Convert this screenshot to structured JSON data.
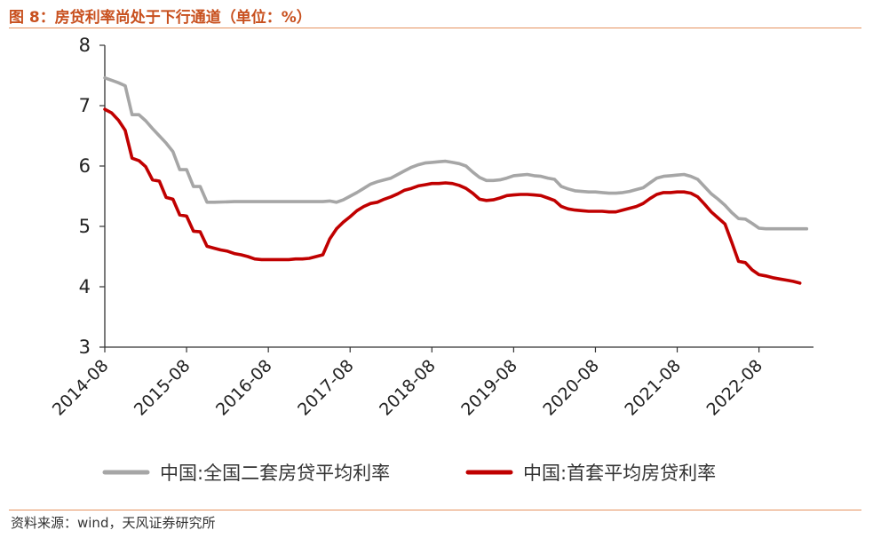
{
  "header": {
    "title": "图 8：房贷利率尚处于下行通道（单位：%）"
  },
  "footer": {
    "source": "资料来源：wind，天风证券研究所"
  },
  "colors": {
    "accent": "#c8501e",
    "series1": "#a6a6a6",
    "series2": "#c00000"
  },
  "chart_data": {
    "type": "line",
    "title": "",
    "xlabel": "",
    "ylabel": "",
    "ylim": [
      3,
      8
    ],
    "yticks": [
      3,
      4,
      5,
      6,
      7,
      8
    ],
    "x_start": "2014-08",
    "x_end": "2023-04",
    "xticks": [
      "2014-08",
      "2015-08",
      "2016-08",
      "2017-08",
      "2018-08",
      "2019-08",
      "2020-08",
      "2021-08",
      "2022-08"
    ],
    "legend_position": "bottom",
    "series": [
      {
        "name": "中国:全国二套房贷平均利率",
        "color": "#a6a6a6",
        "points": [
          [
            "2014-08",
            7.46
          ],
          [
            "2014-09",
            7.42
          ],
          [
            "2014-10",
            7.38
          ],
          [
            "2014-11",
            7.33
          ],
          [
            "2014-12",
            6.85
          ],
          [
            "2015-01",
            6.85
          ],
          [
            "2015-02",
            6.75
          ],
          [
            "2015-03",
            6.62
          ],
          [
            "2015-04",
            6.5
          ],
          [
            "2015-05",
            6.38
          ],
          [
            "2015-06",
            6.24
          ],
          [
            "2015-07",
            5.94
          ],
          [
            "2015-08",
            5.94
          ],
          [
            "2015-09",
            5.66
          ],
          [
            "2015-10",
            5.66
          ],
          [
            "2015-11",
            5.4
          ],
          [
            "2015-12",
            5.4
          ],
          [
            "2016-03",
            5.41
          ],
          [
            "2016-08",
            5.41
          ],
          [
            "2017-02",
            5.41
          ],
          [
            "2017-04",
            5.41
          ],
          [
            "2017-05",
            5.42
          ],
          [
            "2017-06",
            5.4
          ],
          [
            "2017-07",
            5.44
          ],
          [
            "2017-08",
            5.5
          ],
          [
            "2017-09",
            5.56
          ],
          [
            "2017-10",
            5.63
          ],
          [
            "2017-11",
            5.7
          ],
          [
            "2017-12",
            5.74
          ],
          [
            "2018-01",
            5.77
          ],
          [
            "2018-02",
            5.8
          ],
          [
            "2018-03",
            5.86
          ],
          [
            "2018-04",
            5.92
          ],
          [
            "2018-05",
            5.98
          ],
          [
            "2018-06",
            6.02
          ],
          [
            "2018-07",
            6.05
          ],
          [
            "2018-08",
            6.06
          ],
          [
            "2018-09",
            6.07
          ],
          [
            "2018-10",
            6.08
          ],
          [
            "2018-11",
            6.06
          ],
          [
            "2018-12",
            6.04
          ],
          [
            "2019-01",
            6.0
          ],
          [
            "2019-02",
            5.9
          ],
          [
            "2019-03",
            5.81
          ],
          [
            "2019-04",
            5.76
          ],
          [
            "2019-05",
            5.76
          ],
          [
            "2019-06",
            5.77
          ],
          [
            "2019-07",
            5.8
          ],
          [
            "2019-08",
            5.84
          ],
          [
            "2019-09",
            5.85
          ],
          [
            "2019-10",
            5.86
          ],
          [
            "2019-11",
            5.84
          ],
          [
            "2019-12",
            5.83
          ],
          [
            "2020-01",
            5.8
          ],
          [
            "2020-02",
            5.78
          ],
          [
            "2020-03",
            5.66
          ],
          [
            "2020-04",
            5.62
          ],
          [
            "2020-05",
            5.59
          ],
          [
            "2020-06",
            5.58
          ],
          [
            "2020-07",
            5.57
          ],
          [
            "2020-08",
            5.57
          ],
          [
            "2020-09",
            5.56
          ],
          [
            "2020-10",
            5.55
          ],
          [
            "2020-11",
            5.55
          ],
          [
            "2020-12",
            5.56
          ],
          [
            "2021-01",
            5.58
          ],
          [
            "2021-02",
            5.61
          ],
          [
            "2021-03",
            5.64
          ],
          [
            "2021-04",
            5.72
          ],
          [
            "2021-05",
            5.8
          ],
          [
            "2021-06",
            5.83
          ],
          [
            "2021-07",
            5.84
          ],
          [
            "2021-08",
            5.85
          ],
          [
            "2021-09",
            5.86
          ],
          [
            "2021-10",
            5.83
          ],
          [
            "2021-11",
            5.78
          ],
          [
            "2021-12",
            5.66
          ],
          [
            "2022-01",
            5.54
          ],
          [
            "2022-02",
            5.45
          ],
          [
            "2022-03",
            5.35
          ],
          [
            "2022-04",
            5.23
          ],
          [
            "2022-05",
            5.13
          ],
          [
            "2022-06",
            5.12
          ],
          [
            "2022-07",
            5.05
          ],
          [
            "2022-08",
            4.97
          ],
          [
            "2022-09",
            4.96
          ],
          [
            "2022-10",
            4.96
          ],
          [
            "2022-11",
            4.96
          ],
          [
            "2022-12",
            4.96
          ],
          [
            "2023-01",
            4.96
          ],
          [
            "2023-02",
            4.96
          ],
          [
            "2023-03",
            4.96
          ]
        ]
      },
      {
        "name": "中国:首套平均房贷利率",
        "color": "#c00000",
        "points": [
          [
            "2014-08",
            6.94
          ],
          [
            "2014-09",
            6.88
          ],
          [
            "2014-10",
            6.76
          ],
          [
            "2014-11",
            6.59
          ],
          [
            "2014-12",
            6.13
          ],
          [
            "2015-01",
            6.09
          ],
          [
            "2015-02",
            5.99
          ],
          [
            "2015-03",
            5.77
          ],
          [
            "2015-04",
            5.75
          ],
          [
            "2015-05",
            5.48
          ],
          [
            "2015-06",
            5.45
          ],
          [
            "2015-07",
            5.19
          ],
          [
            "2015-08",
            5.17
          ],
          [
            "2015-09",
            4.92
          ],
          [
            "2015-10",
            4.91
          ],
          [
            "2015-11",
            4.67
          ],
          [
            "2015-12",
            4.64
          ],
          [
            "2016-01",
            4.61
          ],
          [
            "2016-02",
            4.59
          ],
          [
            "2016-03",
            4.55
          ],
          [
            "2016-04",
            4.53
          ],
          [
            "2016-05",
            4.5
          ],
          [
            "2016-06",
            4.46
          ],
          [
            "2016-07",
            4.45
          ],
          [
            "2016-08",
            4.45
          ],
          [
            "2016-09",
            4.45
          ],
          [
            "2016-10",
            4.45
          ],
          [
            "2016-11",
            4.45
          ],
          [
            "2016-12",
            4.46
          ],
          [
            "2017-01",
            4.46
          ],
          [
            "2017-02",
            4.47
          ],
          [
            "2017-03",
            4.5
          ],
          [
            "2017-04",
            4.53
          ],
          [
            "2017-05",
            4.79
          ],
          [
            "2017-06",
            4.96
          ],
          [
            "2017-07",
            5.07
          ],
          [
            "2017-08",
            5.16
          ],
          [
            "2017-09",
            5.26
          ],
          [
            "2017-10",
            5.33
          ],
          [
            "2017-11",
            5.38
          ],
          [
            "2017-12",
            5.4
          ],
          [
            "2018-01",
            5.45
          ],
          [
            "2018-02",
            5.49
          ],
          [
            "2018-03",
            5.54
          ],
          [
            "2018-04",
            5.6
          ],
          [
            "2018-05",
            5.63
          ],
          [
            "2018-06",
            5.67
          ],
          [
            "2018-07",
            5.69
          ],
          [
            "2018-08",
            5.71
          ],
          [
            "2018-09",
            5.71
          ],
          [
            "2018-10",
            5.72
          ],
          [
            "2018-11",
            5.71
          ],
          [
            "2018-12",
            5.68
          ],
          [
            "2019-01",
            5.63
          ],
          [
            "2019-02",
            5.55
          ],
          [
            "2019-03",
            5.45
          ],
          [
            "2019-04",
            5.43
          ],
          [
            "2019-05",
            5.44
          ],
          [
            "2019-06",
            5.47
          ],
          [
            "2019-07",
            5.51
          ],
          [
            "2019-08",
            5.52
          ],
          [
            "2019-09",
            5.53
          ],
          [
            "2019-10",
            5.53
          ],
          [
            "2019-11",
            5.52
          ],
          [
            "2019-12",
            5.51
          ],
          [
            "2020-01",
            5.47
          ],
          [
            "2020-02",
            5.43
          ],
          [
            "2020-03",
            5.33
          ],
          [
            "2020-04",
            5.29
          ],
          [
            "2020-05",
            5.27
          ],
          [
            "2020-06",
            5.26
          ],
          [
            "2020-07",
            5.25
          ],
          [
            "2020-08",
            5.25
          ],
          [
            "2020-09",
            5.25
          ],
          [
            "2020-10",
            5.24
          ],
          [
            "2020-11",
            5.24
          ],
          [
            "2020-12",
            5.27
          ],
          [
            "2021-01",
            5.3
          ],
          [
            "2021-02",
            5.33
          ],
          [
            "2021-03",
            5.38
          ],
          [
            "2021-04",
            5.46
          ],
          [
            "2021-05",
            5.53
          ],
          [
            "2021-06",
            5.56
          ],
          [
            "2021-07",
            5.56
          ],
          [
            "2021-08",
            5.57
          ],
          [
            "2021-09",
            5.57
          ],
          [
            "2021-10",
            5.55
          ],
          [
            "2021-11",
            5.49
          ],
          [
            "2021-12",
            5.37
          ],
          [
            "2022-01",
            5.24
          ],
          [
            "2022-02",
            5.14
          ],
          [
            "2022-03",
            5.04
          ],
          [
            "2022-04",
            4.74
          ],
          [
            "2022-05",
            4.42
          ],
          [
            "2022-06",
            4.4
          ],
          [
            "2022-07",
            4.28
          ],
          [
            "2022-08",
            4.2
          ],
          [
            "2022-09",
            4.18
          ],
          [
            "2022-10",
            4.15
          ],
          [
            "2022-11",
            4.13
          ],
          [
            "2022-12",
            4.11
          ],
          [
            "2023-01",
            4.09
          ],
          [
            "2023-02",
            4.06
          ]
        ]
      }
    ]
  }
}
